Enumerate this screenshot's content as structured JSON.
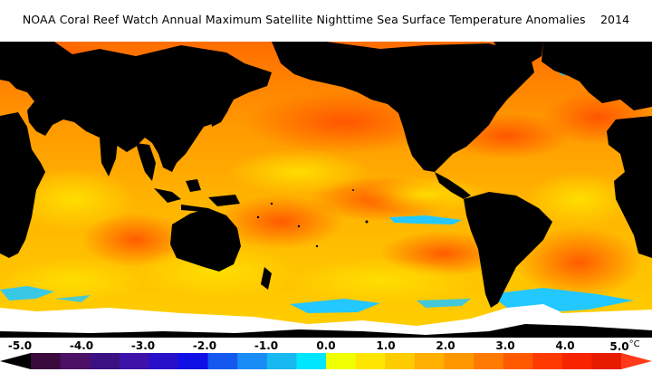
{
  "title": "NOAA Coral Reef Watch Annual Maximum Satellite Nighttime Sea Surface Temperature Anomalies",
  "year": "2014",
  "unit_prefix": "5.0",
  "unit": "°C",
  "scale": {
    "ticks": [
      "-5.0",
      "-4.0",
      "-3.0",
      "-2.0",
      "-1.0",
      "0.0",
      "1.0",
      "2.0",
      "3.0",
      "4.0"
    ],
    "colors": [
      "#3a0a3c",
      "#4c1066",
      "#3b1080",
      "#3e12a8",
      "#2810c8",
      "#1010e6",
      "#1458f0",
      "#1a8cf5",
      "#18b8f0",
      "#00e6ff",
      "#f0ff00",
      "#ffe600",
      "#ffcc00",
      "#ffb000",
      "#ff9800",
      "#ff7a00",
      "#ff5a00",
      "#ff3a00",
      "#f82400",
      "#e81c00"
    ],
    "colors_note": "bin colors"
  },
  "map_colors": {
    "ocean_warm": "#ff8c00",
    "ocean_yellow": "#ffd200",
    "ocean_hot": "#ff3c00",
    "cold_anomaly": "#21c8ff",
    "land": "#000000",
    "ice": "#ffffff"
  }
}
